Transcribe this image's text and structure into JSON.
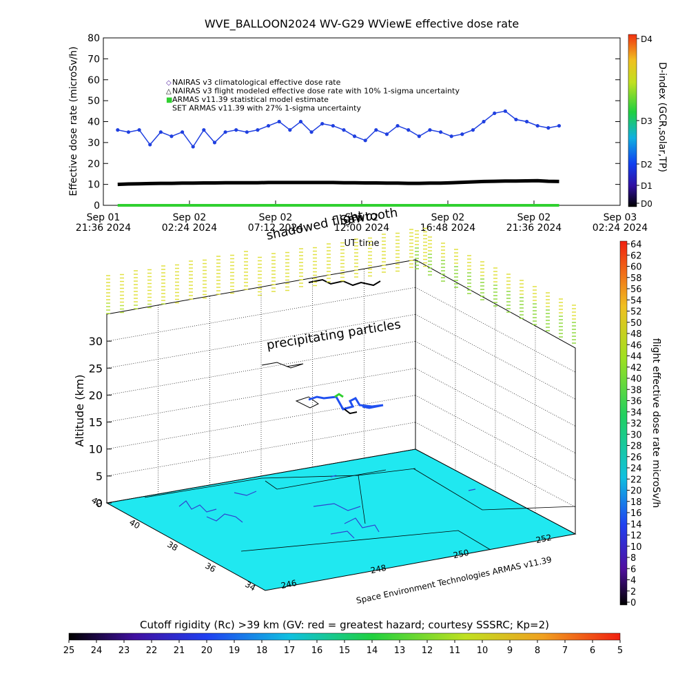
{
  "top_title": "WVE_BALLOON2024 WV-G29 WViewE effective dose rate",
  "top_panel": {
    "ylabel": "Effective dose rate (microSv/h)",
    "xlabel": "UT time",
    "yticks": [
      "0",
      "10",
      "20",
      "30",
      "40",
      "50",
      "60",
      "70",
      "80"
    ],
    "xtick_labels": [
      {
        "line1": "Sep 01",
        "line2": "21:36 2024"
      },
      {
        "line1": "Sep 02",
        "line2": "02:24 2024"
      },
      {
        "line1": "Sep 02",
        "line2": "07:12 2024"
      },
      {
        "line1": "Sep 02",
        "line2": "12:00 2024"
      },
      {
        "line1": "Sep 02",
        "line2": "16:48 2024"
      },
      {
        "line1": "Sep 02",
        "line2": "21:36 2024"
      },
      {
        "line1": "Sep 03",
        "line2": "02:24 2024"
      }
    ],
    "legend": [
      {
        "marker": "◇",
        "text": "NAIRAS v3 climatological effective dose rate",
        "color": "#5020a0"
      },
      {
        "marker": "△",
        "text": "NAIRAS v3 flight modeled effective dose rate with 10% 1-sigma uncertainty",
        "color": "#000000"
      },
      {
        "marker": "■",
        "text": "ARMAS v11.39 statistical model estimate",
        "color": "#30d030"
      },
      {
        "marker": "",
        "text": "SET ARMAS v11.39 with 27% 1-sigma uncertainty",
        "color": "#000000"
      }
    ],
    "dindex_label": "D-index (GCR,solar,TP)",
    "dindex_ticks": [
      "D4",
      "D3",
      "D2",
      "D1",
      "D0"
    ]
  },
  "annotations": {
    "shadowed": "shadowed flight",
    "sawtooth": "Sawtooth",
    "precipitating": "precipitating particles",
    "credit": "Space Environment Technologies ARMAS v11.39"
  },
  "bottom_panel": {
    "zlabel": "Altitude (km)",
    "zticks": [
      "0",
      "5",
      "10",
      "15",
      "20",
      "25",
      "30"
    ],
    "lat_ticks": [
      "42",
      "40",
      "38",
      "36",
      "34"
    ],
    "lon_ticks": [
      "246",
      "248",
      "250",
      "252"
    ],
    "colorbar_label": "flight effective dose rate microSv/h",
    "colorbar_ticks": [
      "64",
      "62",
      "60",
      "58",
      "56",
      "54",
      "52",
      "50",
      "48",
      "46",
      "44",
      "42",
      "40",
      "38",
      "36",
      "34",
      "32",
      "30",
      "28",
      "26",
      "24",
      "22",
      "20",
      "18",
      "16",
      "14",
      "12",
      "10",
      "8",
      "6",
      "4",
      "2",
      "0"
    ]
  },
  "cutoff": {
    "title": "Cutoff rigidity (Rc) >39 km (GV: red = greatest hazard; courtesy SSSRC; Kp=2)",
    "ticks": [
      "25",
      "24",
      "23",
      "22",
      "21",
      "20",
      "19",
      "18",
      "17",
      "16",
      "15",
      "14",
      "13",
      "12",
      "11",
      "10",
      "9",
      "8",
      "7",
      "6",
      "5"
    ]
  },
  "chart_data": {
    "type": "line",
    "title": "WVE_BALLOON2024 WV-G29 WViewE effective dose rate",
    "xlabel": "UT time",
    "ylabel": "Effective dose rate (microSv/h)",
    "ylim": [
      0,
      80
    ],
    "xlim": [
      "2024-09-01 21:36",
      "2024-09-03 02:24"
    ],
    "grid": false,
    "legend_position": "top-left",
    "x_time_hours": [
      0.8,
      1.4,
      2.0,
      2.6,
      3.2,
      3.8,
      4.4,
      5.0,
      5.6,
      6.2,
      6.8,
      7.4,
      8.0,
      8.6,
      9.2,
      9.8,
      10.4,
      11.0,
      11.6,
      12.2,
      12.8,
      13.4,
      14.0,
      14.6,
      15.2,
      15.8,
      16.4,
      17.0,
      17.6,
      18.2,
      18.8,
      19.4,
      20.0,
      20.6,
      21.2,
      21.8,
      22.4,
      23.0,
      23.6,
      24.2,
      24.8,
      25.4
    ],
    "series": [
      {
        "name": "SET ARMAS v11.39 with 27% 1-sigma uncertainty",
        "color": "#2040e0",
        "values": [
          36,
          35,
          36,
          29,
          35,
          33,
          35,
          28,
          36,
          30,
          35,
          36,
          35,
          36,
          38,
          40,
          36,
          40,
          35,
          39,
          38,
          36,
          33,
          31,
          36,
          34,
          38,
          36,
          33,
          36,
          35,
          33,
          34,
          36,
          40,
          44,
          45,
          41,
          40,
          38,
          37,
          38
        ]
      },
      {
        "name": "NAIRAS v3 flight modeled effective dose rate with 10% 1-sigma uncertainty",
        "color": "#000000",
        "values": [
          10,
          10.2,
          10.3,
          10.4,
          10.5,
          10.5,
          10.6,
          10.6,
          10.7,
          10.7,
          10.8,
          10.8,
          10.8,
          10.8,
          10.9,
          10.9,
          10.9,
          10.9,
          10.9,
          10.9,
          10.9,
          10.8,
          10.8,
          10.7,
          10.7,
          10.6,
          10.6,
          10.5,
          10.5,
          10.6,
          10.6,
          10.8,
          11.0,
          11.2,
          11.4,
          11.5,
          11.6,
          11.6,
          11.7,
          11.8,
          11.5,
          11.4
        ]
      },
      {
        "name": "ARMAS v11.39 statistical model estimate",
        "color": "#30d030",
        "values": [
          0,
          0,
          0,
          0,
          0,
          0,
          0,
          0,
          0,
          0,
          0,
          0,
          0,
          0,
          0,
          0,
          0,
          0,
          0,
          0,
          0,
          0,
          0,
          0,
          0,
          0,
          0,
          0,
          0,
          0,
          0,
          0,
          0,
          0,
          0,
          0,
          0,
          0,
          0,
          0,
          0,
          0
        ]
      }
    ]
  },
  "colors": {
    "series_blue": "#2040e0",
    "plane": "#20e8f0",
    "ground_green": "#30d030"
  }
}
